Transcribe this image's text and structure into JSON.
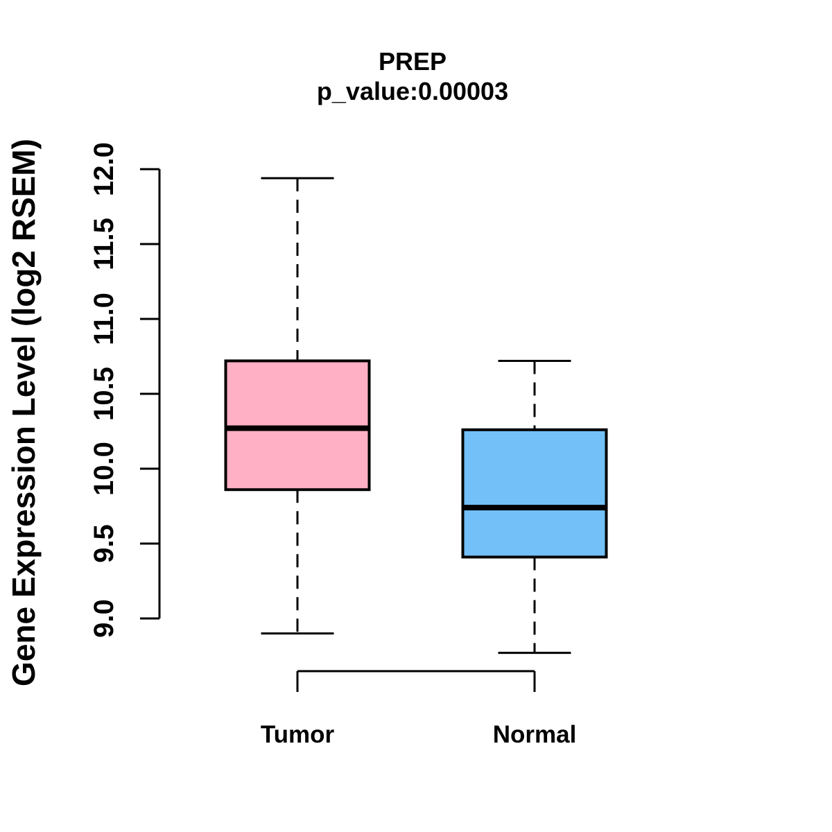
{
  "title": "PREP",
  "subtitle": "p_value:0.00003",
  "y_axis_title": "Gene Expression Level (log2 RSEM)",
  "categories": {
    "tumor": "Tumor",
    "normal": "Normal"
  },
  "colors": {
    "tumor_fill": "#FFB0C4",
    "normal_fill": "#73C0F8",
    "line": "#000000",
    "background": "#ffffff"
  },
  "chart_data": {
    "type": "boxplot",
    "title": "PREP",
    "subtitle": "p_value:0.00003",
    "p_value": 3e-05,
    "ylabel": "Gene Expression Level (log2 RSEM)",
    "xlabel": "",
    "categories": [
      "Tumor",
      "Normal"
    ],
    "ylim": [
      9.0,
      12.0
    ],
    "yticks": [
      9.0,
      9.5,
      10.0,
      10.5,
      11.0,
      11.5,
      12.0
    ],
    "grid": false,
    "legend": "none",
    "series": [
      {
        "name": "Tumor",
        "color": "#FFB0C4",
        "whisker_low": 8.9,
        "q1": 9.86,
        "median": 10.27,
        "q3": 10.72,
        "whisker_high": 11.94
      },
      {
        "name": "Normal",
        "color": "#73C0F8",
        "whisker_low": 8.77,
        "q1": 9.41,
        "median": 9.74,
        "q3": 10.26,
        "whisker_high": 10.72
      }
    ]
  },
  "layout_hints": {
    "value_axis_side": "left",
    "tick_label_rotation_deg": 90,
    "whisker_style": "dashed",
    "x_axis_bracket": true
  }
}
